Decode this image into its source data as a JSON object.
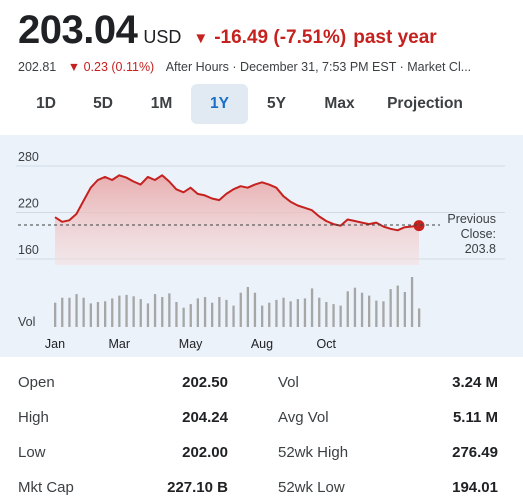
{
  "quote": {
    "price": "203.04",
    "currency": "USD",
    "change": "-16.49 (-7.51%)",
    "period": "past year",
    "after_hours_price": "202.81",
    "after_hours_change": "0.23 (0.11%)",
    "after_hours_label": "After Hours · December 31, 7:53 PM EST · Market Cl..."
  },
  "tabs": [
    {
      "label": "1D"
    },
    {
      "label": "5D"
    },
    {
      "label": "1M"
    },
    {
      "label": "1Y",
      "active": true
    },
    {
      "label": "5Y"
    },
    {
      "label": "Max"
    },
    {
      "label": "Projection"
    }
  ],
  "colors": {
    "line": "#c5221f",
    "fill": "#f2c5c5",
    "panel": "#ebf2fa",
    "bar": "#a6a6a6",
    "accent": "#1a6fc8"
  },
  "chart_data": {
    "type": "line",
    "y_ticks": [
      "280",
      "220",
      "160"
    ],
    "ylim": [
      160,
      280
    ],
    "x_ticks": [
      {
        "label": "Jan",
        "week": 0
      },
      {
        "label": "Mar",
        "week": 9
      },
      {
        "label": "May",
        "week": 19
      },
      {
        "label": "Aug",
        "week": 29
      },
      {
        "label": "Oct",
        "week": 38
      }
    ],
    "previous_close": 203.8,
    "previous_close_label": [
      "Previous",
      "Close:",
      "203.8"
    ],
    "volume_label": "Vol",
    "price_weekly": [
      214,
      208,
      210,
      218,
      235,
      252,
      262,
      266,
      262,
      268,
      265,
      260,
      256,
      266,
      262,
      268,
      260,
      250,
      246,
      252,
      244,
      242,
      238,
      236,
      244,
      250,
      254,
      252,
      256,
      259,
      256,
      252,
      241,
      234,
      229,
      226,
      223,
      215,
      209,
      205,
      203,
      211,
      209,
      207,
      205,
      207,
      202,
      199,
      197,
      201,
      202,
      203.04
    ],
    "volume_weekly": [
      3.4,
      4.1,
      4.1,
      4.6,
      4.1,
      3.3,
      3.5,
      3.6,
      4.0,
      4.4,
      4.5,
      4.3,
      3.9,
      3.3,
      4.6,
      4.2,
      4.7,
      3.5,
      2.7,
      3.2,
      4.0,
      4.2,
      3.4,
      4.2,
      3.8,
      3.0,
      4.8,
      5.6,
      4.8,
      3.0,
      3.4,
      3.8,
      4.1,
      3.6,
      3.9,
      4.0,
      5.4,
      4.1,
      3.5,
      3.2,
      3.0,
      5.0,
      5.5,
      4.8,
      4.4,
      3.7,
      3.6,
      5.3,
      5.8,
      4.9,
      7.0,
      2.6
    ]
  },
  "stats": [
    {
      "k1": "Open",
      "v1": "202.50",
      "k2": "Vol",
      "v2": "3.24 M"
    },
    {
      "k1": "High",
      "v1": "204.24",
      "k2": "Avg Vol",
      "v2": "5.11 M"
    },
    {
      "k1": "Low",
      "v1": "202.00",
      "k2": "52wk High",
      "v2": "276.49"
    },
    {
      "k1": "Mkt Cap",
      "v1": "227.10 B",
      "k2": "52wk Low",
      "v2": "194.01"
    }
  ]
}
